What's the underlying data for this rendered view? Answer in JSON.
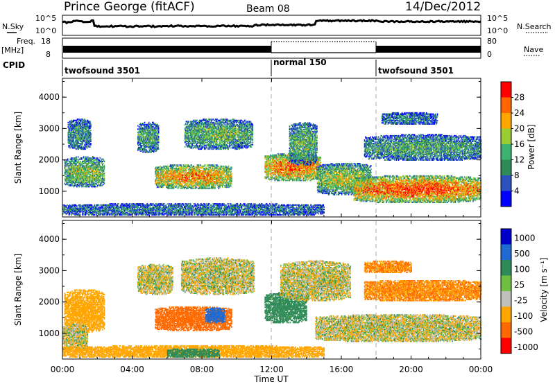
{
  "header": {
    "title": "Prince George (fitACF)",
    "beam": "Beam 08",
    "date": "14/Dec/2012"
  },
  "noise_panel": {
    "left_label": "N.Sky",
    "right_label": "N.Search",
    "left_ticks": [
      "10^5",
      "10^0"
    ],
    "right_ticks": [
      "10^5",
      "10^0"
    ]
  },
  "freq_panel": {
    "left_label_1": "Freq.",
    "left_label_2": "[MHz]",
    "right_label": "Nave",
    "left_ticks": [
      "18",
      "8"
    ],
    "right_ticks": [
      "80",
      "0"
    ]
  },
  "cpid": {
    "label": "CPID",
    "segments": [
      {
        "name": "twofsound 3501",
        "start_hour": 0,
        "end_hour": 12
      },
      {
        "name": "normal 150",
        "start_hour": 12,
        "end_hour": 18
      },
      {
        "name": "twofsound 3501",
        "start_hour": 18,
        "end_hour": 24
      }
    ]
  },
  "x_axis": {
    "label": "Time UT",
    "ticks": [
      "00:00",
      "04:00",
      "08:00",
      "12:00",
      "16:00",
      "20:00",
      "00:00"
    ]
  },
  "power_panel": {
    "ylabel": "Slant Range [km]",
    "yticks": [
      "1000",
      "2000",
      "3000",
      "4000"
    ],
    "colorbar_label": "Power [dB]",
    "colorbar_ticks": [
      "4",
      "8",
      "12",
      "16",
      "20",
      "24",
      "28"
    ],
    "colors": [
      "#0000ff",
      "#2a52be",
      "#2e8b57",
      "#3cb371",
      "#9acd32",
      "#ffa500",
      "#ff6600",
      "#ff0000"
    ]
  },
  "velocity_panel": {
    "ylabel": "Slant Range [km]",
    "yticks": [
      "1000",
      "2000",
      "3000",
      "4000"
    ],
    "colorbar_label": "Velocity [m s⁻¹]",
    "colorbar_ticks": [
      "1000",
      "500",
      "100",
      "25",
      "-25",
      "-100",
      "-500",
      "-1000"
    ],
    "colors": [
      "#0000cd",
      "#1e6ad2",
      "#2e8b57",
      "#6fbf40",
      "#c0c0bb",
      "#ffa500",
      "#ff6a00",
      "#ff0000"
    ]
  },
  "chart_data": {
    "type": "heatmap",
    "x_unit": "hours UT",
    "xlim": [
      0,
      24
    ],
    "ylim_km": [
      180,
      4600
    ],
    "power_regions": [
      {
        "t": [
          0.1,
          2.4
        ],
        "r": [
          1100,
          2100
        ],
        "level": 0.5
      },
      {
        "t": [
          0.3,
          1.6
        ],
        "r": [
          2300,
          3300
        ],
        "level": 0.35
      },
      {
        "t": [
          4.3,
          5.5
        ],
        "r": [
          2200,
          3200
        ],
        "level": 0.4
      },
      {
        "t": [
          5.3,
          9.7
        ],
        "r": [
          1050,
          1850
        ],
        "level": 0.75
      },
      {
        "t": [
          7.0,
          10.9
        ],
        "r": [
          2300,
          3300
        ],
        "level": 0.45
      },
      {
        "t": [
          11.6,
          14.8
        ],
        "r": [
          1300,
          2200
        ],
        "level": 0.8
      },
      {
        "t": [
          13.0,
          14.6
        ],
        "r": [
          1800,
          3200
        ],
        "level": 0.45
      },
      {
        "t": [
          14.6,
          17.7
        ],
        "r": [
          850,
          1900
        ],
        "level": 0.55
      },
      {
        "t": [
          16.7,
          24.0
        ],
        "r": [
          600,
          1500
        ],
        "level": 0.85
      },
      {
        "t": [
          17.3,
          24.0
        ],
        "r": [
          1950,
          2800
        ],
        "level": 0.4
      },
      {
        "t": [
          0.0,
          15.0
        ],
        "r": [
          200,
          600
        ],
        "level": 0.3
      },
      {
        "t": [
          18.3,
          21.5
        ],
        "r": [
          3100,
          3500
        ],
        "level": 0.3
      }
    ],
    "velocity_regions": [
      {
        "t": [
          0.1,
          2.4
        ],
        "r": [
          1000,
          2400
        ],
        "v": -200
      },
      {
        "t": [
          0.0,
          1.4
        ],
        "r": [
          400,
          1300
        ],
        "v": 0
      },
      {
        "t": [
          4.3,
          6.3
        ],
        "r": [
          2200,
          3200
        ],
        "v": 0
      },
      {
        "t": [
          5.3,
          9.7
        ],
        "r": [
          1050,
          1850
        ],
        "v": -400
      },
      {
        "t": [
          8.2,
          9.3
        ],
        "r": [
          1300,
          1800
        ],
        "v": 600
      },
      {
        "t": [
          6.8,
          11.0
        ],
        "r": [
          2200,
          3400
        ],
        "v": 0
      },
      {
        "t": [
          11.6,
          14.0
        ],
        "r": [
          1300,
          2300
        ],
        "v": 150
      },
      {
        "t": [
          12.5,
          16.5
        ],
        "r": [
          2000,
          3300
        ],
        "v": 0
      },
      {
        "t": [
          14.5,
          24.0
        ],
        "r": [
          700,
          1600
        ],
        "v": 0
      },
      {
        "t": [
          17.3,
          24.0
        ],
        "r": [
          2000,
          2700
        ],
        "v": -300
      },
      {
        "t": [
          17.3,
          20.0
        ],
        "r": [
          2900,
          3300
        ],
        "v": -300
      },
      {
        "t": [
          0.0,
          15.0
        ],
        "r": [
          200,
          600
        ],
        "v": -150
      },
      {
        "t": [
          6.0,
          9.0
        ],
        "r": [
          200,
          500
        ],
        "v": 150
      }
    ]
  }
}
